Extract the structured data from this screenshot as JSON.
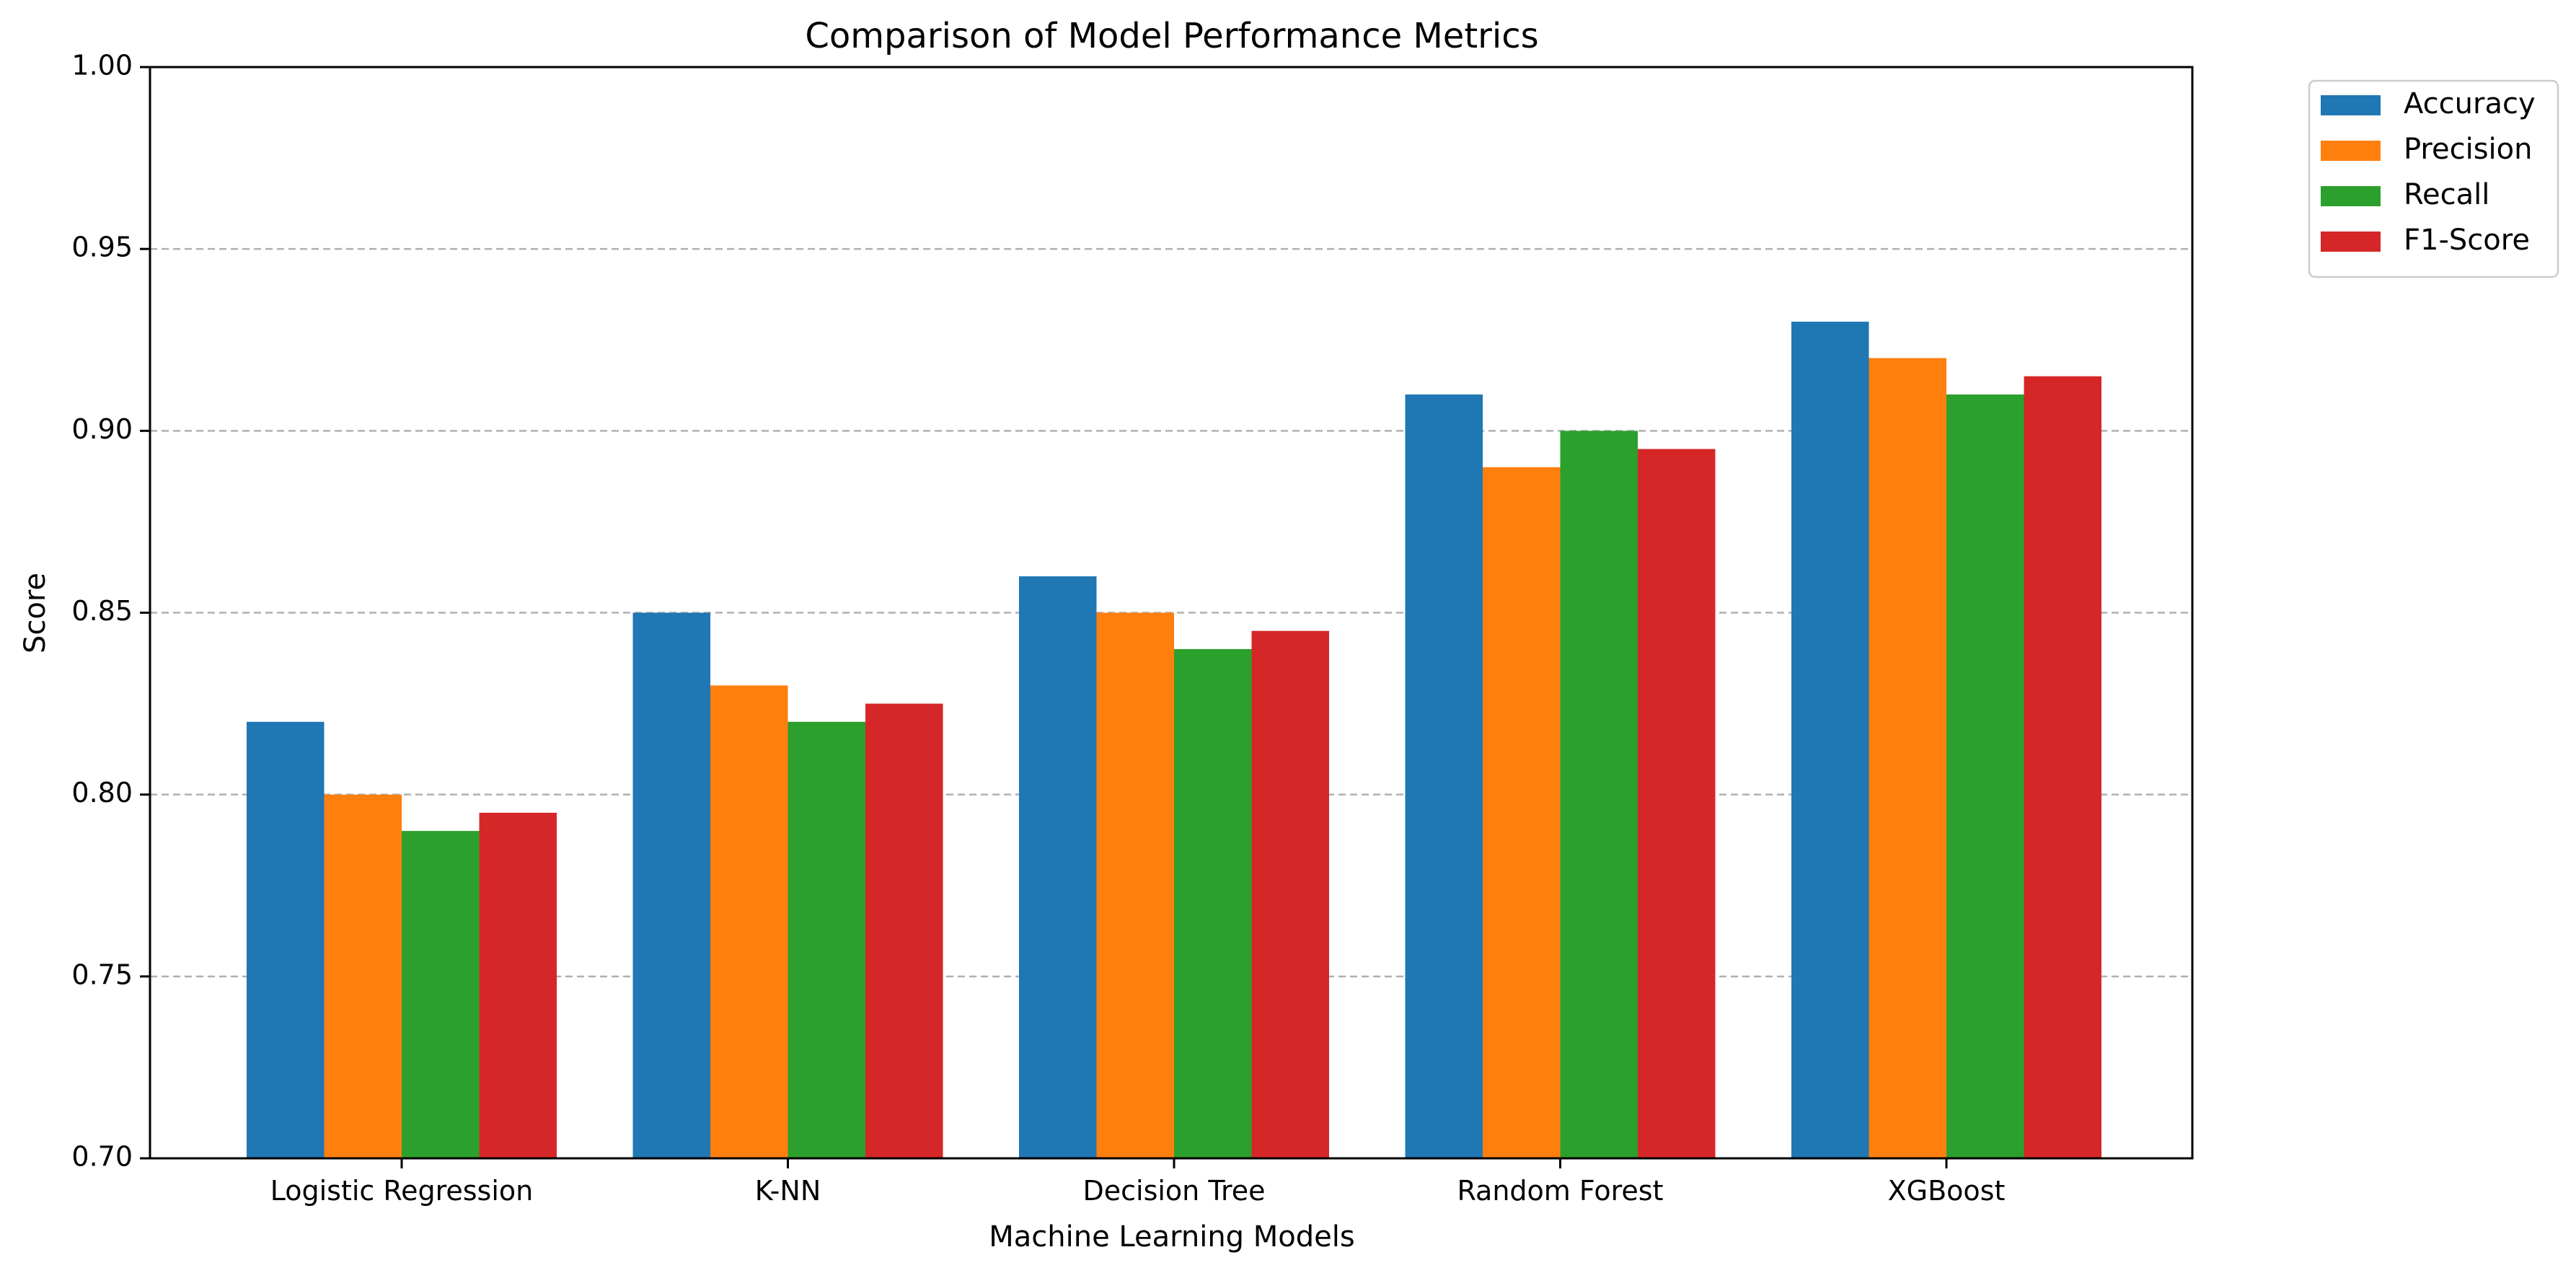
{
  "chart_data": {
    "type": "bar",
    "title": "Comparison of Model Performance Metrics",
    "xlabel": "Machine Learning Models",
    "ylabel": "Score",
    "categories": [
      "Logistic Regression",
      "K-NN",
      "Decision Tree",
      "Random Forest",
      "XGBoost"
    ],
    "series": [
      {
        "name": "Accuracy",
        "color": "#1f77b4",
        "values": [
          0.82,
          0.85,
          0.86,
          0.91,
          0.93
        ]
      },
      {
        "name": "Precision",
        "color": "#ff7f0e",
        "values": [
          0.8,
          0.83,
          0.85,
          0.89,
          0.92
        ]
      },
      {
        "name": "Recall",
        "color": "#2ca02c",
        "values": [
          0.79,
          0.82,
          0.84,
          0.9,
          0.91
        ]
      },
      {
        "name": "F1-Score",
        "color": "#d62728",
        "values": [
          0.795,
          0.825,
          0.845,
          0.895,
          0.915
        ]
      }
    ],
    "ylim": [
      0.7,
      1.0
    ],
    "yticks": [
      "0.70",
      "0.75",
      "0.80",
      "0.85",
      "0.90",
      "0.95",
      "1.00"
    ],
    "grid": "y-dashed",
    "legend_position": "outside-top-right"
  }
}
